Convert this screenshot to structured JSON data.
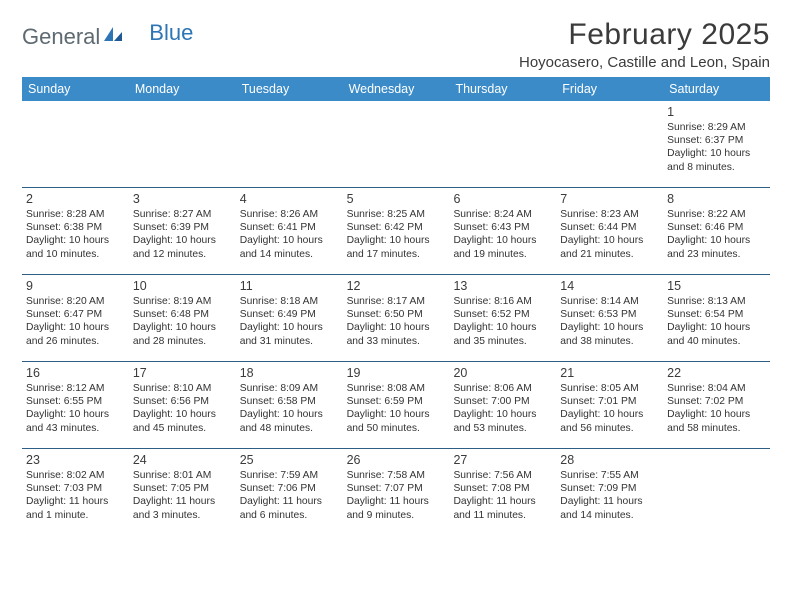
{
  "logo": {
    "text_a": "General",
    "text_b": "Blue"
  },
  "title": "February 2025",
  "location": "Hoyocasero, Castille and Leon, Spain",
  "colors": {
    "header_bg": "#3b8bc9",
    "header_text": "#ffffff",
    "rule": "#2e5d86",
    "logo_gray": "#5e6a72",
    "logo_blue": "#2e75b6",
    "body_text": "#333333"
  },
  "day_labels": [
    "Sunday",
    "Monday",
    "Tuesday",
    "Wednesday",
    "Thursday",
    "Friday",
    "Saturday"
  ],
  "weeks": [
    [
      {
        "n": "",
        "sr": "",
        "ss": "",
        "dl": ""
      },
      {
        "n": "",
        "sr": "",
        "ss": "",
        "dl": ""
      },
      {
        "n": "",
        "sr": "",
        "ss": "",
        "dl": ""
      },
      {
        "n": "",
        "sr": "",
        "ss": "",
        "dl": ""
      },
      {
        "n": "",
        "sr": "",
        "ss": "",
        "dl": ""
      },
      {
        "n": "",
        "sr": "",
        "ss": "",
        "dl": ""
      },
      {
        "n": "1",
        "sr": "Sunrise: 8:29 AM",
        "ss": "Sunset: 6:37 PM",
        "dl": "Daylight: 10 hours and 8 minutes."
      }
    ],
    [
      {
        "n": "2",
        "sr": "Sunrise: 8:28 AM",
        "ss": "Sunset: 6:38 PM",
        "dl": "Daylight: 10 hours and 10 minutes."
      },
      {
        "n": "3",
        "sr": "Sunrise: 8:27 AM",
        "ss": "Sunset: 6:39 PM",
        "dl": "Daylight: 10 hours and 12 minutes."
      },
      {
        "n": "4",
        "sr": "Sunrise: 8:26 AM",
        "ss": "Sunset: 6:41 PM",
        "dl": "Daylight: 10 hours and 14 minutes."
      },
      {
        "n": "5",
        "sr": "Sunrise: 8:25 AM",
        "ss": "Sunset: 6:42 PM",
        "dl": "Daylight: 10 hours and 17 minutes."
      },
      {
        "n": "6",
        "sr": "Sunrise: 8:24 AM",
        "ss": "Sunset: 6:43 PM",
        "dl": "Daylight: 10 hours and 19 minutes."
      },
      {
        "n": "7",
        "sr": "Sunrise: 8:23 AM",
        "ss": "Sunset: 6:44 PM",
        "dl": "Daylight: 10 hours and 21 minutes."
      },
      {
        "n": "8",
        "sr": "Sunrise: 8:22 AM",
        "ss": "Sunset: 6:46 PM",
        "dl": "Daylight: 10 hours and 23 minutes."
      }
    ],
    [
      {
        "n": "9",
        "sr": "Sunrise: 8:20 AM",
        "ss": "Sunset: 6:47 PM",
        "dl": "Daylight: 10 hours and 26 minutes."
      },
      {
        "n": "10",
        "sr": "Sunrise: 8:19 AM",
        "ss": "Sunset: 6:48 PM",
        "dl": "Daylight: 10 hours and 28 minutes."
      },
      {
        "n": "11",
        "sr": "Sunrise: 8:18 AM",
        "ss": "Sunset: 6:49 PM",
        "dl": "Daylight: 10 hours and 31 minutes."
      },
      {
        "n": "12",
        "sr": "Sunrise: 8:17 AM",
        "ss": "Sunset: 6:50 PM",
        "dl": "Daylight: 10 hours and 33 minutes."
      },
      {
        "n": "13",
        "sr": "Sunrise: 8:16 AM",
        "ss": "Sunset: 6:52 PM",
        "dl": "Daylight: 10 hours and 35 minutes."
      },
      {
        "n": "14",
        "sr": "Sunrise: 8:14 AM",
        "ss": "Sunset: 6:53 PM",
        "dl": "Daylight: 10 hours and 38 minutes."
      },
      {
        "n": "15",
        "sr": "Sunrise: 8:13 AM",
        "ss": "Sunset: 6:54 PM",
        "dl": "Daylight: 10 hours and 40 minutes."
      }
    ],
    [
      {
        "n": "16",
        "sr": "Sunrise: 8:12 AM",
        "ss": "Sunset: 6:55 PM",
        "dl": "Daylight: 10 hours and 43 minutes."
      },
      {
        "n": "17",
        "sr": "Sunrise: 8:10 AM",
        "ss": "Sunset: 6:56 PM",
        "dl": "Daylight: 10 hours and 45 minutes."
      },
      {
        "n": "18",
        "sr": "Sunrise: 8:09 AM",
        "ss": "Sunset: 6:58 PM",
        "dl": "Daylight: 10 hours and 48 minutes."
      },
      {
        "n": "19",
        "sr": "Sunrise: 8:08 AM",
        "ss": "Sunset: 6:59 PM",
        "dl": "Daylight: 10 hours and 50 minutes."
      },
      {
        "n": "20",
        "sr": "Sunrise: 8:06 AM",
        "ss": "Sunset: 7:00 PM",
        "dl": "Daylight: 10 hours and 53 minutes."
      },
      {
        "n": "21",
        "sr": "Sunrise: 8:05 AM",
        "ss": "Sunset: 7:01 PM",
        "dl": "Daylight: 10 hours and 56 minutes."
      },
      {
        "n": "22",
        "sr": "Sunrise: 8:04 AM",
        "ss": "Sunset: 7:02 PM",
        "dl": "Daylight: 10 hours and 58 minutes."
      }
    ],
    [
      {
        "n": "23",
        "sr": "Sunrise: 8:02 AM",
        "ss": "Sunset: 7:03 PM",
        "dl": "Daylight: 11 hours and 1 minute."
      },
      {
        "n": "24",
        "sr": "Sunrise: 8:01 AM",
        "ss": "Sunset: 7:05 PM",
        "dl": "Daylight: 11 hours and 3 minutes."
      },
      {
        "n": "25",
        "sr": "Sunrise: 7:59 AM",
        "ss": "Sunset: 7:06 PM",
        "dl": "Daylight: 11 hours and 6 minutes."
      },
      {
        "n": "26",
        "sr": "Sunrise: 7:58 AM",
        "ss": "Sunset: 7:07 PM",
        "dl": "Daylight: 11 hours and 9 minutes."
      },
      {
        "n": "27",
        "sr": "Sunrise: 7:56 AM",
        "ss": "Sunset: 7:08 PM",
        "dl": "Daylight: 11 hours and 11 minutes."
      },
      {
        "n": "28",
        "sr": "Sunrise: 7:55 AM",
        "ss": "Sunset: 7:09 PM",
        "dl": "Daylight: 11 hours and 14 minutes."
      },
      {
        "n": "",
        "sr": "",
        "ss": "",
        "dl": ""
      }
    ]
  ]
}
